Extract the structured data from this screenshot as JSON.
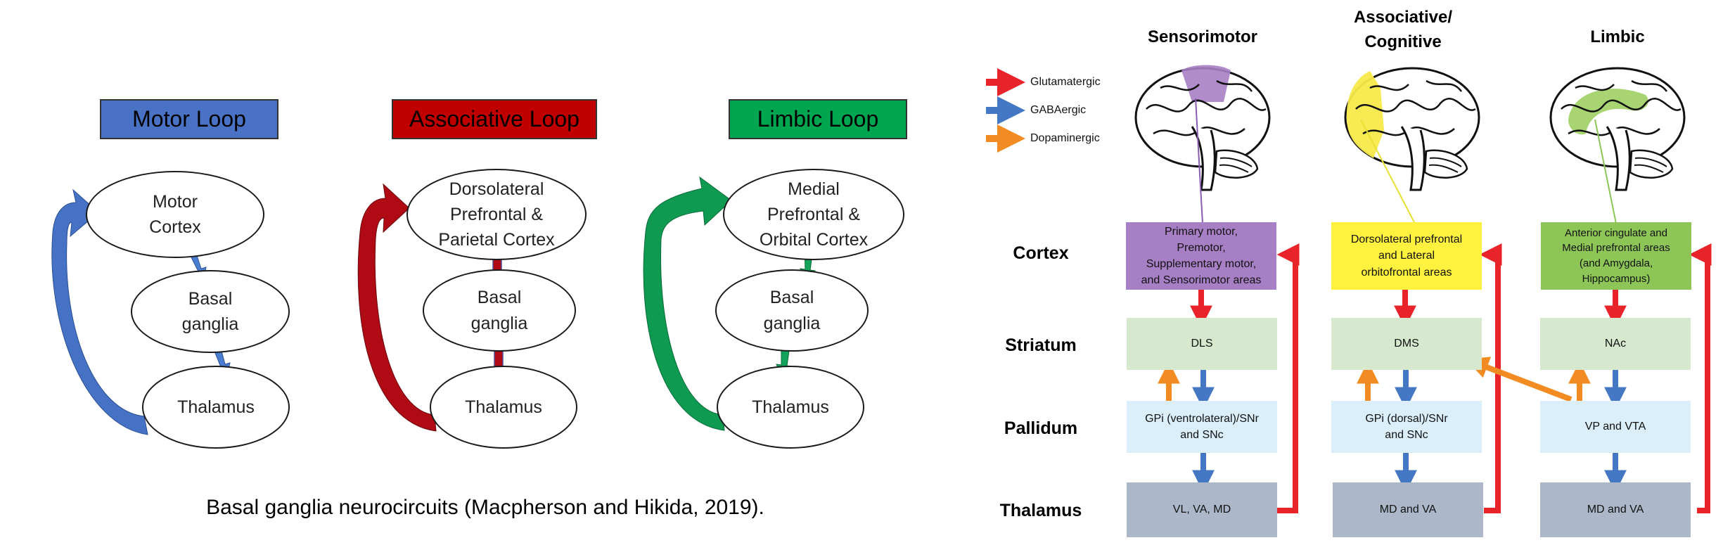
{
  "left_panel": {
    "loops": [
      {
        "title": "Motor Loop",
        "color": "#4a72c4",
        "arrow_color": "#4572c4",
        "nodes": [
          "Motor\nCortex",
          "Basal\nganglia",
          "Thalamus"
        ]
      },
      {
        "title": "Associative Loop",
        "color": "#c00000",
        "arrow_color": "#b00a14",
        "nodes": [
          "Dorsolateral\nPrefrontal &\nParietal Cortex",
          "Basal\nganglia",
          "Thalamus"
        ]
      },
      {
        "title": "Limbic Loop",
        "color": "#00a550",
        "arrow_color": "#0f9a52",
        "nodes": [
          "Medial\nPrefrontal &\nOrbital Cortex",
          "Basal\nganglia",
          "Thalamus"
        ]
      }
    ],
    "caption": "Basal ganglia neurocircuits (Macpherson and Hikida, 2019)."
  },
  "right_panel": {
    "legend": [
      {
        "label": "Glutamatergic",
        "color": "#e8242a"
      },
      {
        "label": "GABAergic",
        "color": "#4477c4"
      },
      {
        "label": "Dopaminergic",
        "color": "#f28c22"
      }
    ],
    "columns": [
      {
        "title": "Sensorimotor",
        "highlight": "#a97fc4",
        "cortex": "Primary motor,\nPremotor,\nSupplementary motor,\nand Sensorimotor areas",
        "striatum": "DLS",
        "pallidum": "GPi (ventrolateral)/SNr\nand SNc",
        "thalamus": "VL, VA, MD"
      },
      {
        "title": "Associative/\nCognitive",
        "highlight": "#f7e94a",
        "cortex": "Dorsolateral prefrontal\nand Lateral\norbitofrontal areas",
        "striatum": "DMS",
        "pallidum": "GPi (dorsal)/SNr\nand SNc",
        "thalamus": "MD and VA"
      },
      {
        "title": "Limbic",
        "highlight": "#a3d36a",
        "cortex": "Anterior cingulate and\nMedial prefrontal areas\n(and Amygdala,\nHippocampus)",
        "striatum": "NAc",
        "pallidum": "VP and VTA",
        "thalamus": "MD and VA"
      }
    ],
    "row_labels": [
      "Cortex",
      "Striatum",
      "Pallidum",
      "Thalamus"
    ],
    "colors": {
      "cortex": [
        "#a77fc4",
        "#fff23f",
        "#8dc657"
      ],
      "striatum": "#d6e8cd",
      "pallidum": "#daeffa",
      "thalamus": "#acb8c9"
    }
  }
}
